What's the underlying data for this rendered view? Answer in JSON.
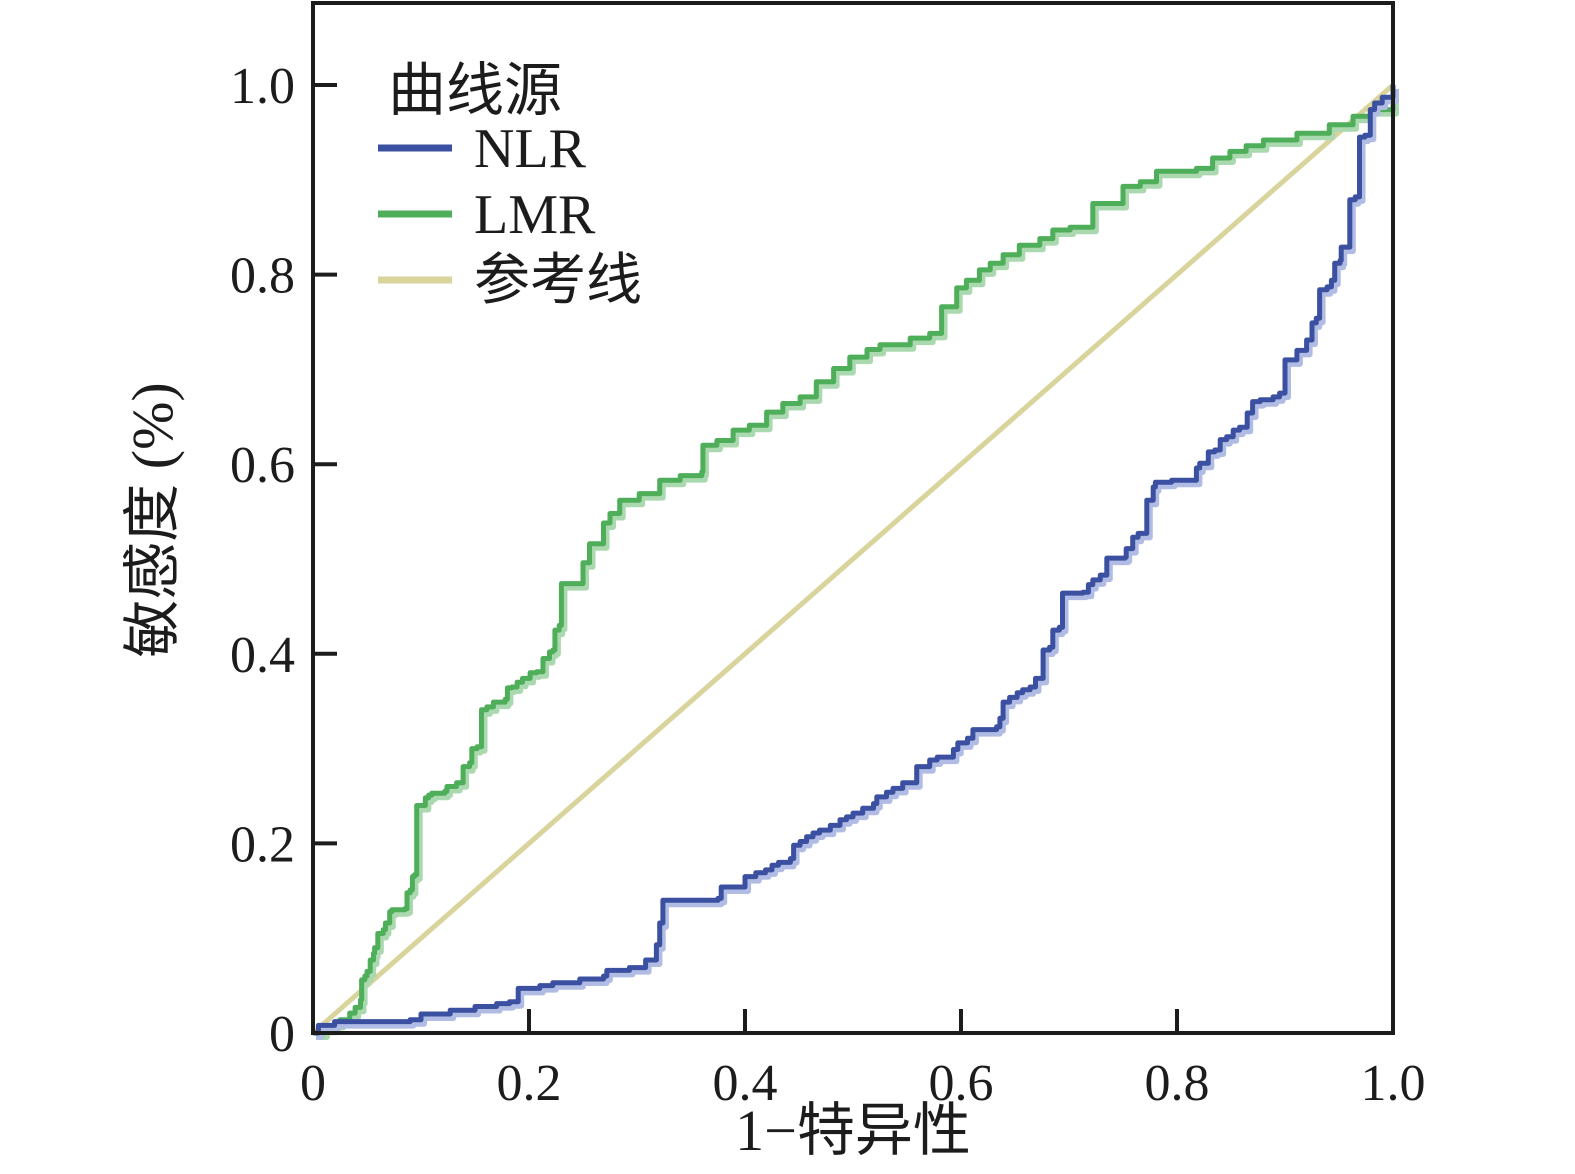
{
  "chart_data": {
    "type": "line",
    "subtype": "roc-step-curves",
    "title": "",
    "xlabel": "1−特异性",
    "ylabel": "敏感度 (%)",
    "xlim": [
      0,
      1
    ],
    "ylim": [
      0,
      1
    ],
    "grid": false,
    "x_ticks": [
      0,
      0.2,
      0.4,
      0.6,
      0.8,
      1.0
    ],
    "x_tick_labels": [
      "0",
      "0.2",
      "0.4",
      "0.6",
      "0.8",
      "1.0"
    ],
    "y_ticks": [
      0,
      0.2,
      0.4,
      0.6,
      0.8,
      1.0
    ],
    "y_tick_labels": [
      "0",
      "0.2",
      "0.4",
      "0.6",
      "0.8",
      "1.0"
    ],
    "legend": {
      "title": "曲线源",
      "position": "top-left"
    },
    "colors": {
      "nlr": "#3c50a1",
      "nlr_halo": "#b0bce4",
      "lmr": "#4fae59",
      "lmr_halo": "#aad8af",
      "reference": "#d9d49c",
      "axis": "#1c1c1c",
      "background": "#ffffff"
    },
    "series": [
      {
        "name": "NLR",
        "color": "#3c50a1",
        "halo": "#b0bce4",
        "step": true,
        "points": [
          [
            0,
            0
          ],
          [
            0.005,
            0.008
          ],
          [
            0.02,
            0.012
          ],
          [
            0.09,
            0.014
          ],
          [
            0.1,
            0.02
          ],
          [
            0.127,
            0.024
          ],
          [
            0.15,
            0.028
          ],
          [
            0.17,
            0.031
          ],
          [
            0.182,
            0.033
          ],
          [
            0.19,
            0.047
          ],
          [
            0.21,
            0.05
          ],
          [
            0.222,
            0.053
          ],
          [
            0.247,
            0.057
          ],
          [
            0.269,
            0.06
          ],
          [
            0.272,
            0.066
          ],
          [
            0.293,
            0.069
          ],
          [
            0.308,
            0.077
          ],
          [
            0.318,
            0.093
          ],
          [
            0.321,
            0.116
          ],
          [
            0.324,
            0.14
          ],
          [
            0.375,
            0.142
          ],
          [
            0.378,
            0.154
          ],
          [
            0.4,
            0.165
          ],
          [
            0.41,
            0.169
          ],
          [
            0.419,
            0.172
          ],
          [
            0.425,
            0.177
          ],
          [
            0.431,
            0.18
          ],
          [
            0.442,
            0.184
          ],
          [
            0.445,
            0.198
          ],
          [
            0.451,
            0.202
          ],
          [
            0.457,
            0.207
          ],
          [
            0.463,
            0.211
          ],
          [
            0.469,
            0.214
          ],
          [
            0.479,
            0.219
          ],
          [
            0.488,
            0.225
          ],
          [
            0.494,
            0.228
          ],
          [
            0.5,
            0.232
          ],
          [
            0.509,
            0.237
          ],
          [
            0.519,
            0.242
          ],
          [
            0.522,
            0.249
          ],
          [
            0.531,
            0.254
          ],
          [
            0.537,
            0.258
          ],
          [
            0.546,
            0.264
          ],
          [
            0.559,
            0.281
          ],
          [
            0.571,
            0.288
          ],
          [
            0.578,
            0.291
          ],
          [
            0.593,
            0.299
          ],
          [
            0.597,
            0.306
          ],
          [
            0.606,
            0.311
          ],
          [
            0.611,
            0.32
          ],
          [
            0.633,
            0.323
          ],
          [
            0.636,
            0.332
          ],
          [
            0.639,
            0.349
          ],
          [
            0.645,
            0.354
          ],
          [
            0.652,
            0.359
          ],
          [
            0.657,
            0.362
          ],
          [
            0.664,
            0.365
          ],
          [
            0.669,
            0.374
          ],
          [
            0.676,
            0.404
          ],
          [
            0.682,
            0.407
          ],
          [
            0.685,
            0.425
          ],
          [
            0.691,
            0.428
          ],
          [
            0.694,
            0.464
          ],
          [
            0.713,
            0.465
          ],
          [
            0.718,
            0.473
          ],
          [
            0.722,
            0.478
          ],
          [
            0.729,
            0.483
          ],
          [
            0.735,
            0.501
          ],
          [
            0.752,
            0.502
          ],
          [
            0.753,
            0.511
          ],
          [
            0.759,
            0.523
          ],
          [
            0.764,
            0.527
          ],
          [
            0.772,
            0.562
          ],
          [
            0.778,
            0.576
          ],
          [
            0.78,
            0.581
          ],
          [
            0.795,
            0.583
          ],
          [
            0.818,
            0.596
          ],
          [
            0.821,
            0.601
          ],
          [
            0.829,
            0.613
          ],
          [
            0.835,
            0.615
          ],
          [
            0.84,
            0.626
          ],
          [
            0.846,
            0.629
          ],
          [
            0.852,
            0.636
          ],
          [
            0.858,
            0.639
          ],
          [
            0.865,
            0.654
          ],
          [
            0.87,
            0.666
          ],
          [
            0.877,
            0.668
          ],
          [
            0.889,
            0.671
          ],
          [
            0.895,
            0.675
          ],
          [
            0.9,
            0.71
          ],
          [
            0.911,
            0.72
          ],
          [
            0.92,
            0.731
          ],
          [
            0.925,
            0.749
          ],
          [
            0.929,
            0.754
          ],
          [
            0.932,
            0.784
          ],
          [
            0.939,
            0.787
          ],
          [
            0.943,
            0.794
          ],
          [
            0.946,
            0.812
          ],
          [
            0.951,
            0.815
          ],
          [
            0.952,
            0.829
          ],
          [
            0.96,
            0.834
          ],
          [
            0.96,
            0.879
          ],
          [
            0.965,
            0.882
          ],
          [
            0.969,
            0.892
          ],
          [
            0.969,
            0.945
          ],
          [
            0.974,
            0.947
          ],
          [
            0.979,
            0.974
          ],
          [
            0.983,
            0.981
          ],
          [
            0.99,
            0.987
          ],
          [
            1,
            1
          ]
        ]
      },
      {
        "name": "LMR",
        "color": "#4fae59",
        "halo": "#aad8af",
        "step": true,
        "points": [
          [
            0,
            0
          ],
          [
            0.01,
            0.005
          ],
          [
            0.02,
            0.01
          ],
          [
            0.025,
            0.014
          ],
          [
            0.034,
            0.021
          ],
          [
            0.039,
            0.027
          ],
          [
            0.044,
            0.035
          ],
          [
            0.045,
            0.056
          ],
          [
            0.048,
            0.06
          ],
          [
            0.05,
            0.065
          ],
          [
            0.053,
            0.077
          ],
          [
            0.056,
            0.084
          ],
          [
            0.057,
            0.09
          ],
          [
            0.06,
            0.105
          ],
          [
            0.065,
            0.109
          ],
          [
            0.067,
            0.116
          ],
          [
            0.071,
            0.128
          ],
          [
            0.073,
            0.13
          ],
          [
            0.085,
            0.131
          ],
          [
            0.087,
            0.148
          ],
          [
            0.09,
            0.151
          ],
          [
            0.092,
            0.165
          ],
          [
            0.094,
            0.167
          ],
          [
            0.096,
            0.24
          ],
          [
            0.104,
            0.248
          ],
          [
            0.107,
            0.251
          ],
          [
            0.11,
            0.253
          ],
          [
            0.122,
            0.255
          ],
          [
            0.124,
            0.26
          ],
          [
            0.133,
            0.264
          ],
          [
            0.139,
            0.281
          ],
          [
            0.145,
            0.285
          ],
          [
            0.147,
            0.3
          ],
          [
            0.152,
            0.302
          ],
          [
            0.156,
            0.341
          ],
          [
            0.161,
            0.344
          ],
          [
            0.167,
            0.349
          ],
          [
            0.178,
            0.352
          ],
          [
            0.18,
            0.364
          ],
          [
            0.184,
            0.365
          ],
          [
            0.189,
            0.37
          ],
          [
            0.194,
            0.374
          ],
          [
            0.201,
            0.38
          ],
          [
            0.207,
            0.381
          ],
          [
            0.213,
            0.395
          ],
          [
            0.219,
            0.402
          ],
          [
            0.222,
            0.404
          ],
          [
            0.224,
            0.425
          ],
          [
            0.228,
            0.43
          ],
          [
            0.23,
            0.474
          ],
          [
            0.25,
            0.496
          ],
          [
            0.256,
            0.516
          ],
          [
            0.269,
            0.538
          ],
          [
            0.275,
            0.548
          ],
          [
            0.284,
            0.562
          ],
          [
            0.302,
            0.569
          ],
          [
            0.321,
            0.583
          ],
          [
            0.34,
            0.588
          ],
          [
            0.36,
            0.592
          ],
          [
            0.361,
            0.62
          ],
          [
            0.374,
            0.625
          ],
          [
            0.389,
            0.636
          ],
          [
            0.404,
            0.641
          ],
          [
            0.42,
            0.655
          ],
          [
            0.435,
            0.664
          ],
          [
            0.451,
            0.671
          ],
          [
            0.466,
            0.687
          ],
          [
            0.482,
            0.701
          ],
          [
            0.497,
            0.713
          ],
          [
            0.513,
            0.721
          ],
          [
            0.525,
            0.726
          ],
          [
            0.553,
            0.733
          ],
          [
            0.571,
            0.738
          ],
          [
            0.582,
            0.766
          ],
          [
            0.596,
            0.786
          ],
          [
            0.605,
            0.794
          ],
          [
            0.617,
            0.805
          ],
          [
            0.627,
            0.812
          ],
          [
            0.639,
            0.821
          ],
          [
            0.654,
            0.831
          ],
          [
            0.673,
            0.838
          ],
          [
            0.685,
            0.847
          ],
          [
            0.701,
            0.85
          ],
          [
            0.722,
            0.875
          ],
          [
            0.75,
            0.893
          ],
          [
            0.766,
            0.898
          ],
          [
            0.781,
            0.909
          ],
          [
            0.818,
            0.912
          ],
          [
            0.833,
            0.923
          ],
          [
            0.849,
            0.93
          ],
          [
            0.864,
            0.936
          ],
          [
            0.88,
            0.942
          ],
          [
            0.911,
            0.949
          ],
          [
            0.941,
            0.958
          ],
          [
            0.963,
            0.967
          ],
          [
            0.979,
            0.974
          ],
          [
            1,
            1
          ]
        ]
      },
      {
        "name": "参考线",
        "color": "#d9d49c",
        "halo": null,
        "step": false,
        "points": [
          [
            0,
            0
          ],
          [
            1,
            1
          ]
        ]
      }
    ]
  }
}
